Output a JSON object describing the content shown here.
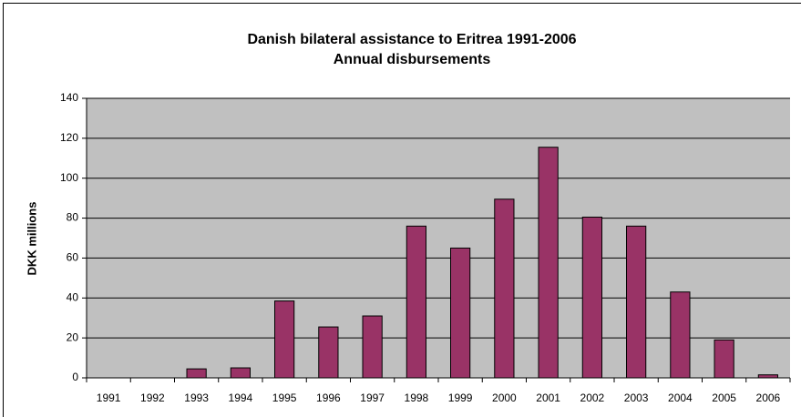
{
  "chart_data": {
    "type": "bar",
    "title": "Danish bilateral assistance to Eritrea 1991-2006",
    "subtitle": "Annual disbursements",
    "ylabel": "DKK millions",
    "categories": [
      "1991",
      "1992",
      "1993",
      "1994",
      "1995",
      "1996",
      "1997",
      "1998",
      "1999",
      "2000",
      "2001",
      "2002",
      "2003",
      "2004",
      "2005",
      "2006"
    ],
    "values": [
      0,
      0,
      4.5,
      5,
      38.5,
      25.5,
      31,
      76,
      65,
      89.5,
      115.5,
      80.5,
      76,
      43,
      19,
      1.5
    ],
    "color": "#993366",
    "ylim": [
      0,
      140
    ],
    "yticks": [
      0,
      20,
      40,
      60,
      80,
      100,
      120,
      140
    ],
    "grid": true
  }
}
